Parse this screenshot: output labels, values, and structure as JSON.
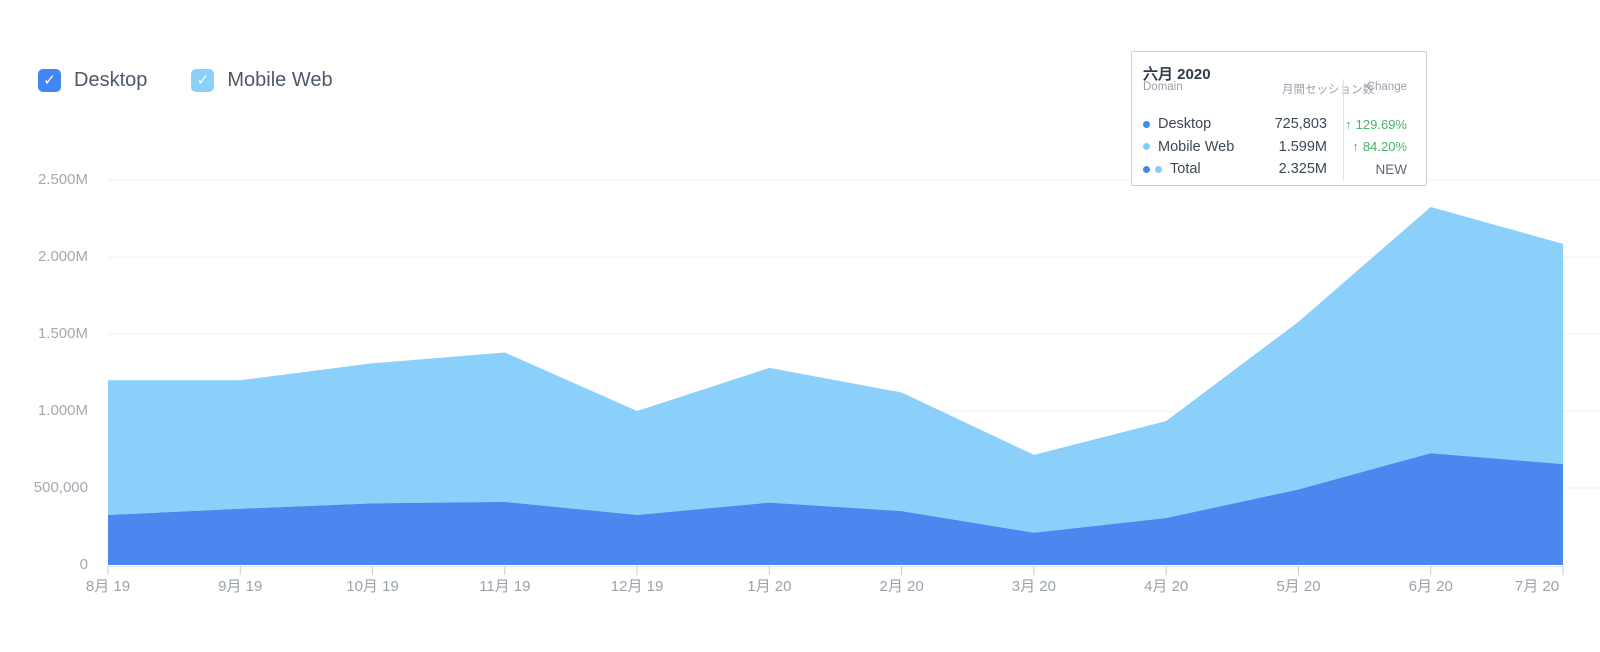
{
  "legend": {
    "items": [
      {
        "id": "desktop",
        "label": "Desktop",
        "checked": true,
        "color": "#4385f4"
      },
      {
        "id": "mobile-web",
        "label": "Mobile Web",
        "checked": true,
        "color": "#8ad0fa"
      }
    ],
    "check_glyph": "✓"
  },
  "tooltip": {
    "title": "六月 2020",
    "columns": {
      "domain": "Domain",
      "sessions": "月間セッション数",
      "change": "Change"
    },
    "up_arrow": "↑",
    "rows": [
      {
        "label": "Desktop",
        "value": "725,803",
        "change": "129.69%",
        "direction": "up",
        "dots": [
          "#4385f4"
        ]
      },
      {
        "label": "Mobile Web",
        "value": "1.599M",
        "change": "84.20%",
        "direction": "up",
        "dots": [
          "#85ccf9"
        ]
      },
      {
        "label": "Total",
        "value": "2.325M",
        "change": "NEW",
        "direction": "none",
        "dots": [
          "#4385f4",
          "#85ccf9"
        ]
      }
    ]
  },
  "chart_data": {
    "type": "area",
    "stacked": true,
    "grid": true,
    "legend_position": "top-left",
    "title": "",
    "xlabel": "",
    "ylabel": "",
    "categories": [
      "8月 19",
      "9月 19",
      "10月 19",
      "11月 19",
      "12月 19",
      "1月 20",
      "2月 20",
      "3月 20",
      "4月 20",
      "5月 20",
      "6月 20",
      "7月 20"
    ],
    "series": [
      {
        "name": "Desktop",
        "color": "#4a87ef",
        "values": [
          325000,
          365000,
          400000,
          410000,
          325000,
          405000,
          350000,
          210000,
          305000,
          490000,
          725803,
          655000
        ]
      },
      {
        "name": "Mobile Web",
        "color": "#8bd0fa",
        "values": [
          875000,
          835000,
          910000,
          970000,
          675000,
          875000,
          770000,
          505000,
          630000,
          1090000,
          1599000,
          1430000
        ]
      }
    ],
    "totals": [
      1200000,
      1200000,
      1310000,
      1380000,
      1000000,
      1280000,
      1120000,
      715000,
      935000,
      1580000,
      2324803,
      2085000
    ],
    "ylim": [
      0,
      2700000
    ],
    "y_ticks": [
      {
        "label": "0",
        "value": 0
      },
      {
        "label": "500,000",
        "value": 500000
      },
      {
        "label": "1.000M",
        "value": 1000000
      },
      {
        "label": "1.500M",
        "value": 1500000
      },
      {
        "label": "2.000M",
        "value": 2000000
      },
      {
        "label": "2.500M",
        "value": 2500000
      }
    ]
  },
  "colors": {
    "gridline": "#f1f1f1",
    "axis_line": "#e7e7e7",
    "tick": "#c9ced4",
    "positive_change": "#45b566"
  }
}
